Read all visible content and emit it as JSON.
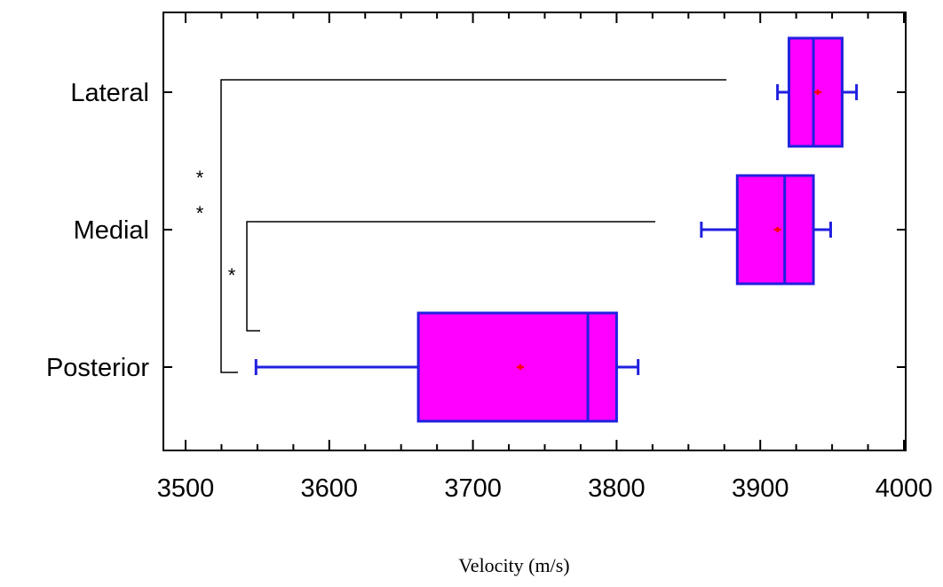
{
  "chart_data": {
    "type": "boxplot",
    "orientation": "horizontal",
    "title": "",
    "xlabel": "Velocity (m/s)",
    "ylabel": "",
    "xlim": [
      3500,
      4000
    ],
    "xticks": [
      3500,
      3600,
      3700,
      3800,
      3900,
      4000
    ],
    "categories": [
      "Lateral",
      "Medial",
      "Posterior"
    ],
    "boxes": [
      {
        "category": "Lateral",
        "whisker_low": 3912,
        "q1": 3920,
        "median": 3937,
        "q3": 3957,
        "whisker_high": 3967,
        "mean": 3940
      },
      {
        "category": "Medial",
        "whisker_low": 3859,
        "q1": 3884,
        "median": 3917,
        "q3": 3937,
        "whisker_high": 3949,
        "mean": 3912
      },
      {
        "category": "Posterior",
        "whisker_low": 3549,
        "q1": 3662,
        "median": 3780,
        "q3": 3800,
        "whisker_high": 3815,
        "mean": 3733
      }
    ],
    "significance": [
      {
        "between": [
          "Lateral",
          "Posterior"
        ],
        "marker": "* *"
      },
      {
        "between": [
          "Medial",
          "Posterior"
        ],
        "marker": "*"
      }
    ],
    "grid": false,
    "colors": {
      "box_fill": "#ff00ff",
      "box_stroke": "#2020e0",
      "mean_marker": "#ff0000",
      "axes": "#000000"
    }
  }
}
